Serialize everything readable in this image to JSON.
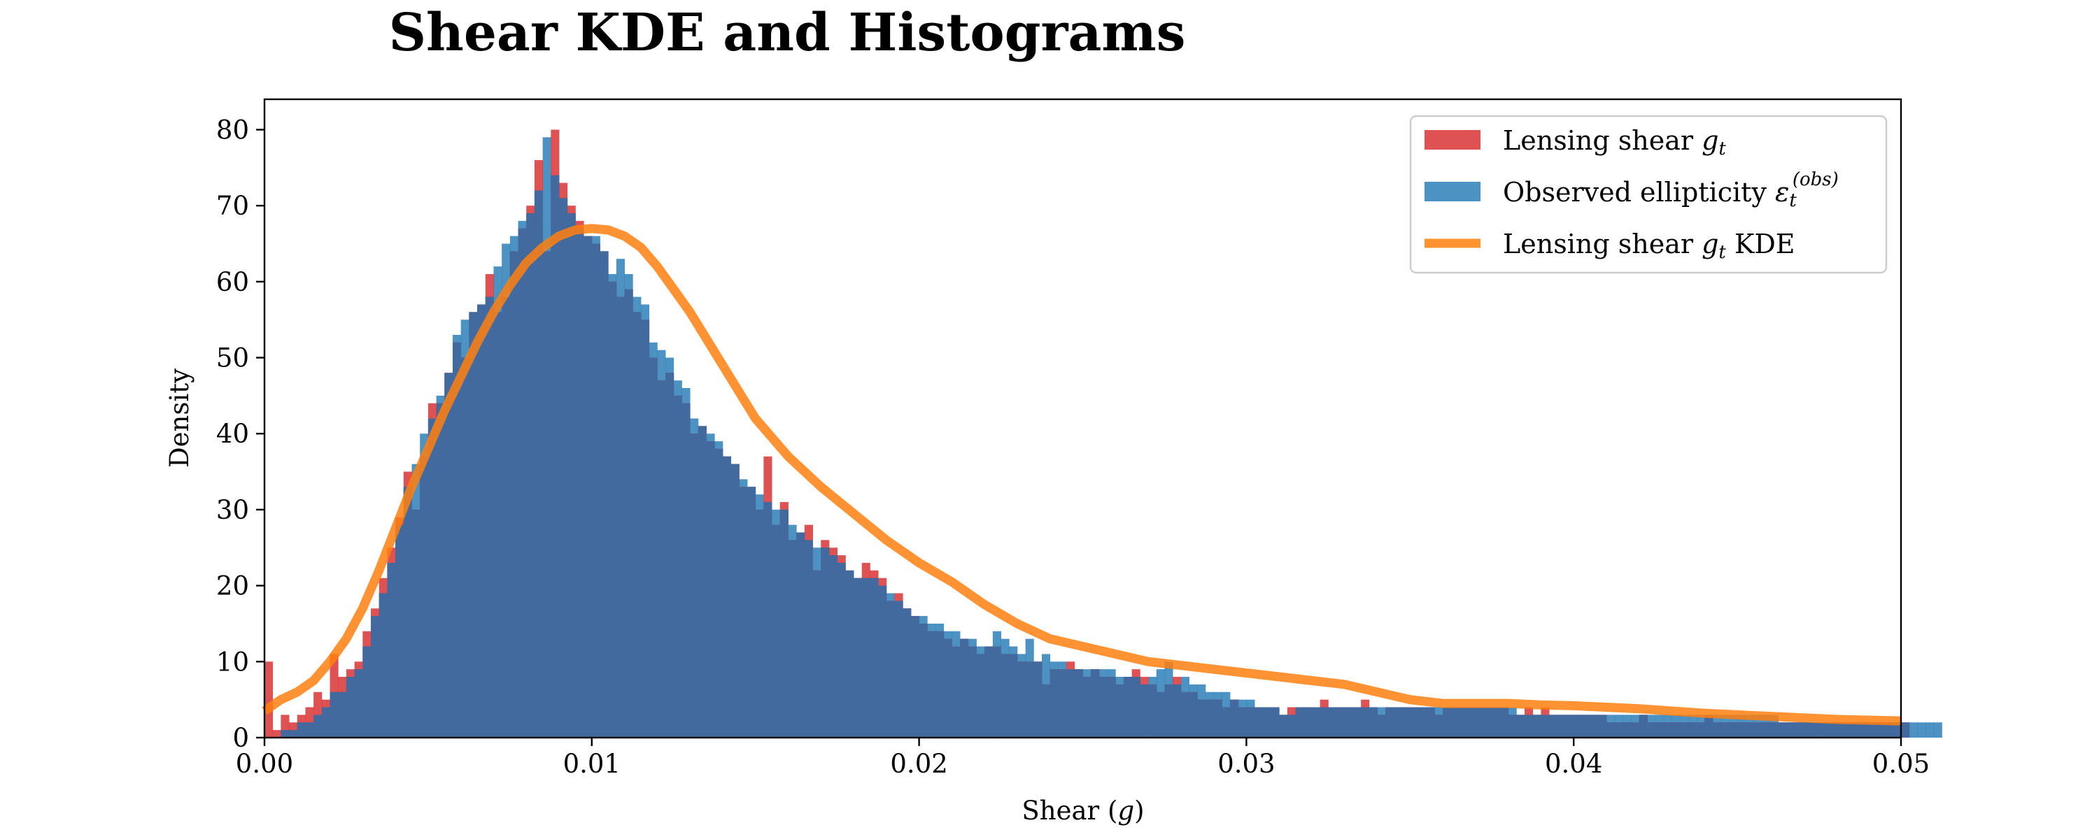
{
  "chart_data": {
    "type": "bar",
    "title": "Shear KDE and Histograms",
    "xlabel": {
      "text": "Shear (",
      "var": "g",
      "suffix": ")"
    },
    "ylabel": "Density",
    "xlim": [
      0,
      0.05
    ],
    "ylim": [
      0,
      84
    ],
    "xticks": [
      0.0,
      0.01,
      0.02,
      0.03,
      0.04,
      0.05
    ],
    "xtick_labels": [
      "0.00",
      "0.01",
      "0.02",
      "0.03",
      "0.04",
      "0.05"
    ],
    "yticks": [
      0,
      10,
      20,
      30,
      40,
      50,
      60,
      70,
      80
    ],
    "ytick_labels": [
      "0",
      "10",
      "20",
      "30",
      "40",
      "50",
      "60",
      "70",
      "80"
    ],
    "grid": false,
    "legend_position": "top-right",
    "bin_width": 0.00025,
    "colors": {
      "lensing": "#d62728",
      "observed": "#1f77b4",
      "kde": "#ff7f0e",
      "overlap": "#436a9f"
    },
    "series": [
      {
        "name": "Lensing shear",
        "legend": {
          "text": "Lensing shear ",
          "var": "g",
          "sub": "t"
        },
        "kind": "histogram",
        "values": [
          10,
          1,
          3,
          2,
          3,
          4,
          6,
          5,
          11,
          8,
          9,
          10,
          14,
          17,
          21,
          25,
          29,
          35,
          30,
          37,
          44,
          44,
          48,
          52,
          50,
          56,
          57,
          61,
          56,
          58,
          64,
          67,
          70,
          76,
          64,
          80,
          73,
          70,
          68,
          66,
          65,
          64,
          60,
          58,
          59,
          56,
          55,
          50,
          47,
          48,
          45,
          44,
          40,
          41,
          39,
          38,
          37,
          36,
          33,
          33,
          30,
          37,
          28,
          31,
          26,
          27,
          28,
          22,
          26,
          25,
          24,
          22,
          21,
          23,
          22,
          21,
          18,
          19,
          17,
          16,
          15,
          14,
          14,
          13,
          12,
          13,
          12,
          11,
          12,
          12,
          11,
          11,
          10,
          10,
          10,
          7,
          9,
          9,
          10,
          9,
          8,
          9,
          8,
          8,
          7,
          8,
          9,
          8,
          7,
          6,
          7,
          8,
          6,
          6,
          5,
          5,
          5,
          4,
          5,
          4,
          4,
          4,
          4,
          4,
          3,
          4,
          4,
          4,
          4,
          5,
          4,
          4,
          4,
          4,
          5,
          4,
          3,
          4,
          4,
          4,
          4,
          4,
          4,
          3,
          4,
          4,
          4,
          4,
          4,
          4,
          4,
          4,
          3,
          3,
          4,
          3,
          4,
          3,
          3,
          3,
          3,
          3,
          3,
          3,
          2,
          2,
          2,
          2,
          3,
          2,
          2,
          2,
          2,
          2,
          2,
          2,
          3,
          2,
          2,
          2,
          2,
          2,
          2,
          2,
          2,
          2,
          2,
          2,
          2,
          2,
          2,
          2,
          2,
          2,
          2,
          2,
          2,
          2,
          2,
          2,
          2
        ]
      },
      {
        "name": "Observed ellipticity",
        "legend": {
          "text": "Observed ellipticity ",
          "var": "ε",
          "sub": "t",
          "sup": "(obs)"
        },
        "kind": "histogram",
        "values": [
          0,
          0,
          1,
          1,
          2,
          2,
          3,
          4,
          6,
          6,
          8,
          9,
          12,
          16,
          19,
          23,
          28,
          33,
          36,
          40,
          42,
          45,
          48,
          53,
          55,
          56,
          57,
          58,
          62,
          65,
          66,
          68,
          69,
          72,
          79,
          74,
          71,
          69,
          67,
          66,
          66,
          64,
          61,
          63,
          61,
          58,
          57,
          52,
          51,
          50,
          47,
          46,
          42,
          41,
          40,
          39,
          37,
          36,
          34,
          33,
          32,
          31,
          30,
          30,
          28,
          27,
          26,
          25,
          25,
          24,
          23,
          22,
          21,
          21,
          21,
          20,
          19,
          18,
          17,
          16,
          16,
          15,
          15,
          14,
          14,
          13,
          13,
          12,
          12,
          14,
          13,
          12,
          11,
          13,
          10,
          11,
          10,
          10,
          9,
          9,
          9,
          9,
          9,
          9,
          8,
          8,
          8,
          7,
          8,
          9,
          10,
          7,
          8,
          7,
          7,
          6,
          6,
          6,
          5,
          5,
          5,
          4,
          4,
          4,
          3,
          3,
          4,
          4,
          4,
          4,
          4,
          4,
          4,
          4,
          4,
          4,
          4,
          4,
          4,
          4,
          4,
          4,
          4,
          4,
          4,
          4,
          4,
          4,
          4,
          4,
          4,
          4,
          4,
          3,
          3,
          3,
          3,
          3,
          3,
          3,
          3,
          3,
          3,
          3,
          3,
          3,
          3,
          3,
          3,
          3,
          3,
          3,
          3,
          3,
          3,
          3,
          3,
          3,
          3,
          3,
          3,
          3,
          3,
          3,
          3,
          2,
          2,
          2,
          2,
          2,
          2,
          2,
          2,
          2,
          2,
          2,
          2,
          2,
          2,
          2,
          2,
          2,
          2,
          2,
          2
        ]
      },
      {
        "name": "Lensing shear KDE",
        "legend": {
          "text": "Lensing shear ",
          "var": "g",
          "sub": "t",
          "suffix": " KDE"
        },
        "kind": "line",
        "x": [
          0.0,
          0.0005,
          0.001,
          0.0015,
          0.002,
          0.0025,
          0.003,
          0.0035,
          0.004,
          0.0045,
          0.005,
          0.0055,
          0.006,
          0.0065,
          0.007,
          0.0075,
          0.008,
          0.0085,
          0.009,
          0.0095,
          0.01,
          0.0105,
          0.011,
          0.0115,
          0.012,
          0.0125,
          0.013,
          0.0135,
          0.014,
          0.0145,
          0.015,
          0.016,
          0.017,
          0.018,
          0.019,
          0.02,
          0.021,
          0.022,
          0.023,
          0.024,
          0.025,
          0.026,
          0.027,
          0.028,
          0.029,
          0.03,
          0.031,
          0.032,
          0.033,
          0.034,
          0.035,
          0.036,
          0.037,
          0.038,
          0.039,
          0.04,
          0.041,
          0.042,
          0.043,
          0.044,
          0.045,
          0.046,
          0.047,
          0.048,
          0.049,
          0.05
        ],
        "y": [
          3.5,
          5,
          6,
          7.5,
          10,
          13,
          17,
          22,
          27.5,
          33,
          38,
          43,
          47.5,
          52,
          56,
          59.5,
          62.5,
          64.5,
          66,
          66.8,
          67,
          66.8,
          66,
          64.5,
          62,
          59,
          56,
          52.5,
          49,
          45.5,
          42,
          37,
          33,
          29.5,
          26,
          23,
          20.5,
          17.5,
          15,
          13,
          12,
          11,
          10,
          9.5,
          9,
          8.5,
          8,
          7.5,
          7,
          6,
          5,
          4.5,
          4.5,
          4.5,
          4.3,
          4.2,
          4,
          3.8,
          3.5,
          3.2,
          3,
          2.8,
          2.6,
          2.4,
          2.3,
          2.2
        ]
      }
    ]
  }
}
